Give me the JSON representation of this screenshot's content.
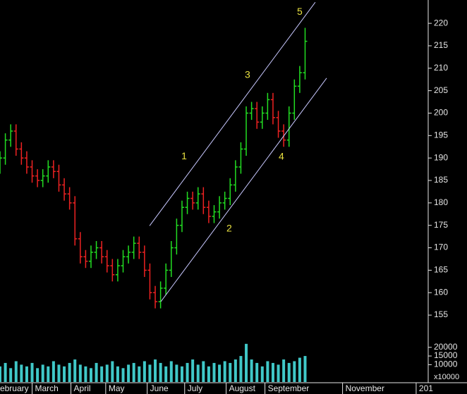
{
  "chart_data": {
    "type": "ohlc",
    "up_color": "#22dd22",
    "down_color": "#ee2222",
    "volume_color": "#40c8c8",
    "line_color": "#c8c8ff",
    "wave_color": "#e8e040",
    "x": [
      0,
      4,
      8,
      12,
      16,
      20,
      24,
      28,
      32,
      36,
      40,
      44,
      48,
      52,
      56,
      60,
      64,
      68,
      72,
      76,
      80,
      84,
      88,
      92,
      96,
      100,
      104,
      108,
      112,
      116,
      120,
      124,
      128,
      132,
      136,
      140,
      144,
      148,
      152,
      156,
      160,
      164,
      168,
      172,
      176,
      180,
      184,
      188,
      192,
      196,
      200,
      204,
      208,
      212,
      216,
      220,
      224,
      228
    ],
    "open": [
      188,
      190,
      194,
      196,
      192,
      190,
      188,
      186,
      185,
      186,
      188,
      187,
      184,
      182,
      180,
      172,
      168,
      167,
      169,
      170,
      168,
      166,
      164,
      166,
      168,
      169,
      171,
      169,
      165,
      160,
      158,
      161,
      165,
      170,
      175,
      179,
      181,
      180,
      182,
      179,
      177,
      178,
      180,
      181,
      184,
      188,
      192,
      200,
      201,
      198,
      200,
      203,
      199,
      196,
      194,
      200,
      206,
      209
    ],
    "high": [
      191.5,
      195.5,
      197.5,
      197.5,
      193.5,
      191.5,
      189.5,
      187.5,
      187.5,
      189.5,
      189.5,
      188.5,
      185.5,
      183.5,
      181.5,
      173.5,
      169.5,
      170.5,
      171.5,
      171.5,
      169.5,
      167.5,
      167.5,
      169.5,
      170.5,
      172.5,
      172.5,
      170.5,
      166.5,
      161.5,
      162.5,
      166.5,
      171.5,
      176.5,
      180.5,
      182.5,
      182.5,
      183.5,
      183.5,
      180.5,
      179.5,
      181.5,
      182.5,
      185.5,
      189.5,
      193.5,
      201.5,
      202.5,
      202.5,
      201.5,
      204.5,
      204.5,
      200.5,
      197.5,
      201.5,
      207.5,
      210.5,
      219
    ],
    "low": [
      186.5,
      188.5,
      192.5,
      190.5,
      188.5,
      186.5,
      184.5,
      183.5,
      183.5,
      184.5,
      185.5,
      182.5,
      180.5,
      178.5,
      170.5,
      166.5,
      165.5,
      165.5,
      167.5,
      166.5,
      164.5,
      162.5,
      162.5,
      164.5,
      166.5,
      167.5,
      167.5,
      163.5,
      158.5,
      156.5,
      156.5,
      159.5,
      163.5,
      168.5,
      173.5,
      177.5,
      178.5,
      178.5,
      177.5,
      175.5,
      175.5,
      176.5,
      178.5,
      179.5,
      182.5,
      186.5,
      190.5,
      198.5,
      196.5,
      196.5,
      198.5,
      197.5,
      194.5,
      192.5,
      192.5,
      198.5,
      204.5,
      207.5
    ],
    "close": [
      190,
      194,
      196,
      192,
      190,
      188,
      186,
      185,
      186,
      188,
      187,
      184,
      182,
      180,
      172,
      168,
      167,
      169,
      170,
      168,
      166,
      164,
      166,
      168,
      169,
      171,
      169,
      165,
      160,
      158,
      161,
      165,
      170,
      175,
      179,
      181,
      180,
      182,
      179,
      177,
      178,
      180,
      181,
      184,
      188,
      192,
      200,
      201,
      198,
      200,
      203,
      199,
      196,
      194,
      200,
      206,
      209,
      216
    ],
    "volume": [
      9000,
      11000,
      8000,
      12000,
      10000,
      9000,
      11000,
      8000,
      10000,
      9000,
      12000,
      10000,
      9000,
      11000,
      13000,
      10000,
      9000,
      8000,
      11000,
      9000,
      10000,
      12000,
      9000,
      8000,
      10000,
      11000,
      9000,
      12000,
      10000,
      13000,
      11000,
      9000,
      12000,
      10000,
      9000,
      11000,
      13000,
      10000,
      12000,
      9000,
      11000,
      10000,
      12000,
      11000,
      13000,
      15000,
      22000,
      13000,
      11000,
      9000,
      12000,
      11000,
      10000,
      13000,
      11000,
      12000,
      14000,
      15000
    ],
    "xlim": [
      0,
      320
    ],
    "xticks": [
      {
        "value": -6,
        "label": "February"
      },
      {
        "value": 24,
        "label": "March"
      },
      {
        "value": 53,
        "label": "April"
      },
      {
        "value": 79,
        "label": "May"
      },
      {
        "value": 110,
        "label": "June"
      },
      {
        "value": 138,
        "label": "July"
      },
      {
        "value": 169,
        "label": "August"
      },
      {
        "value": 198,
        "label": "September"
      },
      {
        "value": 256,
        "label": "November"
      },
      {
        "value": 311,
        "label": "201"
      }
    ],
    "ylim": [
      151.4,
      225.2
    ],
    "yticks": [
      155,
      160,
      165,
      170,
      175,
      180,
      185,
      190,
      195,
      200,
      205,
      210,
      215,
      220
    ],
    "volume_lim": [
      0,
      26000
    ],
    "volume_ticks": [
      10000,
      15000,
      20000
    ],
    "volume_unit": "x10000",
    "trendlines": [
      {
        "x": [
          111.8,
          235.6
        ],
        "y": [
          174.9,
          224.7
        ]
      },
      {
        "x": [
          120.2,
          244.1
        ],
        "y": [
          158.0,
          207.8
        ]
      }
    ],
    "annotations": [
      {
        "text": "1",
        "x": 137.6,
        "y": 190.3
      },
      {
        "text": "2",
        "x": 171.3,
        "y": 174.2
      },
      {
        "text": "3",
        "x": 185,
        "y": 208.4
      },
      {
        "text": "4",
        "x": 210.3,
        "y": 190.2
      },
      {
        "text": "5",
        "x": 224,
        "y": 222.5
      }
    ]
  }
}
